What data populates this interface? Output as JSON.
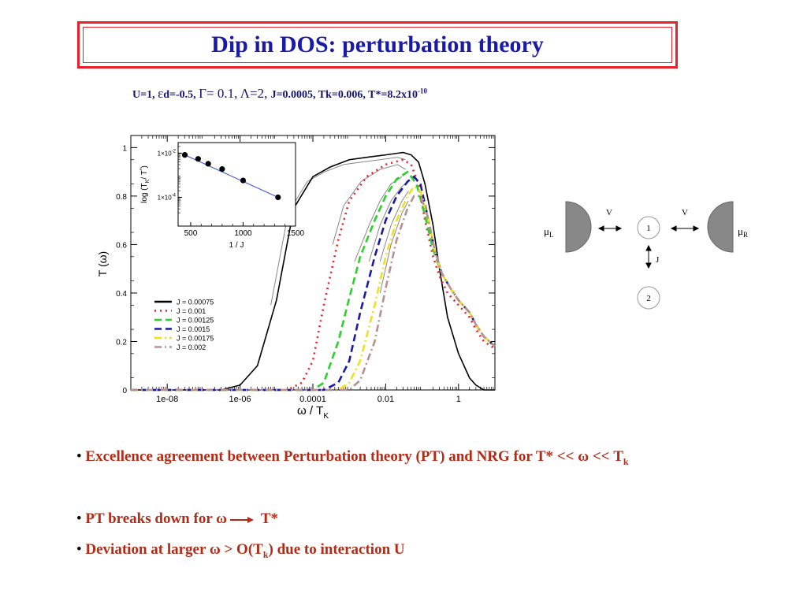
{
  "title": "Dip in DOS: perturbation theory",
  "params": {
    "u": "U=1, ",
    "eps_sym": "ε",
    "ed": "d=-0.5, ",
    "gamma_sym": "Γ",
    "gamma_val": "= 0.1, ",
    "lambda_sym": "Λ",
    "lambda_val": "=2, ",
    "rest": "J=0.0005, Tk=0.006, T*=8.2x10",
    "exp": "-10"
  },
  "chart_data": [
    {
      "type": "line",
      "xscale": "log",
      "xlabel": "ω / T",
      "xlabel_sub": "K",
      "ylabel": "T (ω)",
      "xlim": [
        1e-09,
        10
      ],
      "ylim": [
        0,
        1.05
      ],
      "xticks": [
        1e-08,
        1e-06,
        0.0001,
        0.01,
        1
      ],
      "xtick_labels": [
        "1e-08",
        "1e-06",
        "0.0001",
        "0.01",
        "1"
      ],
      "yticks": [
        0,
        0.2,
        0.4,
        0.6,
        0.8,
        1
      ],
      "ytick_labels": [
        "0",
        "0.2",
        "0.4",
        "0.6",
        "0.8",
        "1"
      ],
      "legend_position": "lower-left",
      "series": [
        {
          "name": "J = 0.00075",
          "color": "#000000",
          "dash": "solid",
          "x": [
            1e-09,
            3e-07,
            1e-06,
            3e-06,
            1e-05,
            3e-05,
            0.0001,
            0.0003,
            0.001,
            0.003,
            0.01,
            0.03,
            0.05,
            0.08,
            0.12,
            0.2,
            0.3,
            0.5,
            1,
            2,
            3,
            5,
            10
          ],
          "y": [
            0,
            0,
            0.02,
            0.1,
            0.37,
            0.75,
            0.88,
            0.92,
            0.95,
            0.96,
            0.97,
            0.98,
            0.97,
            0.94,
            0.85,
            0.68,
            0.5,
            0.3,
            0.15,
            0.05,
            0.02,
            0,
            0
          ]
        },
        {
          "name": "J = 0.001",
          "color": "#e8202a",
          "dash": "dot",
          "x": [
            1e-09,
            2e-05,
            5e-05,
            0.0001,
            0.0002,
            0.0005,
            0.001,
            0.003,
            0.01,
            0.03,
            0.05,
            0.08,
            0.12,
            0.2,
            0.3,
            0.5,
            1,
            2,
            3,
            5,
            10
          ],
          "y": [
            0,
            0,
            0.03,
            0.12,
            0.35,
            0.62,
            0.78,
            0.88,
            0.93,
            0.95,
            0.93,
            0.85,
            0.7,
            0.55,
            0.47,
            0.4,
            0.35,
            0.3,
            0.25,
            0.2,
            0.17
          ]
        },
        {
          "name": "J = 0.00125",
          "color": "#2ad12a",
          "dash": "dash",
          "x": [
            1e-09,
            0.0001,
            0.0002,
            0.0005,
            0.001,
            0.002,
            0.005,
            0.01,
            0.02,
            0.04,
            0.07,
            0.12,
            0.2,
            0.35,
            0.6,
            1,
            2,
            3,
            5,
            10
          ],
          "y": [
            0,
            0,
            0.03,
            0.2,
            0.38,
            0.55,
            0.7,
            0.8,
            0.87,
            0.9,
            0.85,
            0.72,
            0.58,
            0.48,
            0.42,
            0.37,
            0.32,
            0.27,
            0.22,
            0.18
          ]
        },
        {
          "name": "J = 0.0015",
          "color": "#1a1aa8",
          "dash": "dash",
          "x": [
            1e-09,
            0.0002,
            0.0005,
            0.001,
            0.002,
            0.005,
            0.01,
            0.02,
            0.04,
            0.06,
            0.09,
            0.14,
            0.22,
            0.35,
            0.6,
            1,
            2,
            3,
            5,
            10
          ],
          "y": [
            0,
            0,
            0.03,
            0.12,
            0.32,
            0.55,
            0.7,
            0.8,
            0.86,
            0.88,
            0.85,
            0.72,
            0.58,
            0.48,
            0.42,
            0.37,
            0.32,
            0.27,
            0.22,
            0.18
          ]
        },
        {
          "name": "J = 0.00175",
          "color": "#f0e020",
          "dash": "dashdot",
          "x": [
            1e-09,
            0.0005,
            0.001,
            0.002,
            0.005,
            0.01,
            0.02,
            0.04,
            0.06,
            0.09,
            0.14,
            0.22,
            0.35,
            0.6,
            1,
            2,
            3,
            5,
            10
          ],
          "y": [
            0,
            0,
            0.03,
            0.12,
            0.35,
            0.55,
            0.7,
            0.8,
            0.84,
            0.82,
            0.72,
            0.58,
            0.48,
            0.42,
            0.37,
            0.32,
            0.27,
            0.22,
            0.18
          ]
        },
        {
          "name": "J = 0.002",
          "color": "#b89090",
          "dash": "dashdot",
          "x": [
            1e-09,
            0.001,
            0.002,
            0.005,
            0.01,
            0.02,
            0.04,
            0.06,
            0.09,
            0.14,
            0.22,
            0.35,
            0.6,
            1,
            2,
            3,
            5,
            10
          ],
          "y": [
            0,
            0,
            0.04,
            0.2,
            0.42,
            0.62,
            0.75,
            0.8,
            0.8,
            0.72,
            0.58,
            0.48,
            0.42,
            0.37,
            0.32,
            0.27,
            0.22,
            0.18
          ]
        }
      ],
      "pt_curves": {
        "color": "#888888",
        "x_starts": [
          5e-06,
          0.0003,
          0.0015,
          0.003,
          0.006,
          0.01
        ]
      }
    },
    {
      "type": "scatter",
      "yscale": "log",
      "xlabel": "1 / J",
      "ylabel": "log (T",
      "ylabel_sub": "K",
      "ylabel_tail": "/ T",
      "ylabel_sup": "*",
      "ylabel_close": ")",
      "xlim": [
        380,
        1500
      ],
      "ylim": [
        5e-06,
        0.03
      ],
      "xticks": [
        500,
        1000,
        1500
      ],
      "xtick_labels": [
        "500",
        "1000",
        "1500"
      ],
      "ytick_labels": [
        {
          "base": "1×10",
          "exp": "-2",
          "value": 0.01
        },
        {
          "base": "1×10",
          "exp": "-4",
          "value": 0.0001
        }
      ],
      "x": [
        444,
        571,
        667,
        800,
        1000,
        1333
      ],
      "y": [
        0.0083,
        0.0055,
        0.0033,
        0.0019,
        0.00058,
        0.0001
      ],
      "fit_color": "#4060e0"
    }
  ],
  "diagram": {
    "mu_left": "μ",
    "mu_left_sub": "L",
    "mu_right": "μ",
    "mu_right_sub": "R",
    "v_left": "V",
    "v_right": "V",
    "j": "J",
    "node1": "1",
    "node2": "2"
  },
  "bullets": {
    "b1_text": "Excellence agreement between Perturbation theory (PT)  and NRG for T* << ",
    "b1_omega": "ω",
    "b1_tail": " << T",
    "b1_sub": "k",
    "b2_text": "PT breaks down for ",
    "b2_omega": "ω",
    "b2_tail": " T*",
    "b3_text": "Deviation at larger ",
    "b3_omega": "ω",
    "b3_mid": " > O(T",
    "b3_sub": "k",
    "b3_tail": ") due to interaction U"
  }
}
